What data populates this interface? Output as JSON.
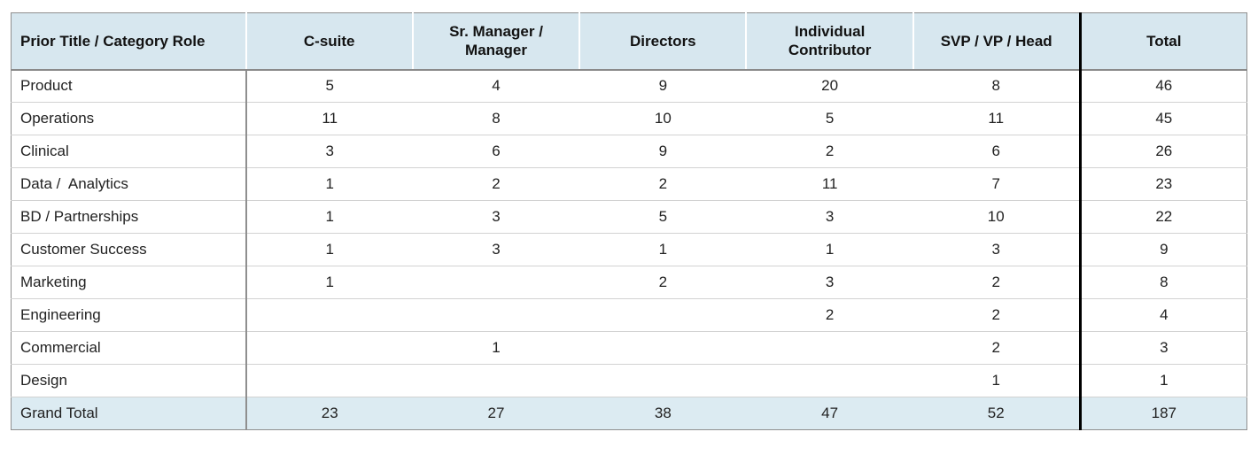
{
  "chart_data": {
    "type": "table",
    "columns": [
      "Prior Title / Category Role",
      "C-suite",
      "Sr. Manager / Manager",
      "Directors",
      "Individual Contributor",
      "SVP / VP / Head",
      "Total"
    ],
    "rows": [
      {
        "label": "Product",
        "values": [
          "5",
          "4",
          "9",
          "20",
          "8",
          "46"
        ]
      },
      {
        "label": "Operations",
        "values": [
          "11",
          "8",
          "10",
          "5",
          "11",
          "45"
        ]
      },
      {
        "label": "Clinical",
        "values": [
          "3",
          "6",
          "9",
          "2",
          "6",
          "26"
        ]
      },
      {
        "label": "Data /  Analytics",
        "values": [
          "1",
          "2",
          "2",
          "11",
          "7",
          "23"
        ]
      },
      {
        "label": "BD / Partnerships",
        "values": [
          "1",
          "3",
          "5",
          "3",
          "10",
          "22"
        ]
      },
      {
        "label": "Customer Success",
        "values": [
          "1",
          "3",
          "1",
          "1",
          "3",
          "9"
        ]
      },
      {
        "label": "Marketing",
        "values": [
          "1",
          "",
          "2",
          "3",
          "2",
          "8"
        ]
      },
      {
        "label": "Engineering",
        "values": [
          "",
          "",
          "",
          "2",
          "2",
          "4"
        ]
      },
      {
        "label": "Commercial",
        "values": [
          "",
          "1",
          "",
          "",
          "2",
          "3"
        ]
      },
      {
        "label": "Design",
        "values": [
          "",
          "",
          "",
          "",
          "1",
          "1"
        ]
      },
      {
        "label": "Grand Total",
        "values": [
          "23",
          "27",
          "38",
          "47",
          "52",
          "187"
        ],
        "is_grand_total": true
      }
    ],
    "layout_hints": {
      "grand_total_row_highlighted": true,
      "thick_divider_before_column": "Total",
      "header_align": "center",
      "first_column_align": "left"
    },
    "colors": {
      "header_bg": "#d7e7ef",
      "grand_total_bg": "#dcebf2",
      "outer_border": "#8f8f8f",
      "row_divider": "#d2d2d2",
      "total_divider": "#000000",
      "text": "#1f1f1f"
    }
  }
}
